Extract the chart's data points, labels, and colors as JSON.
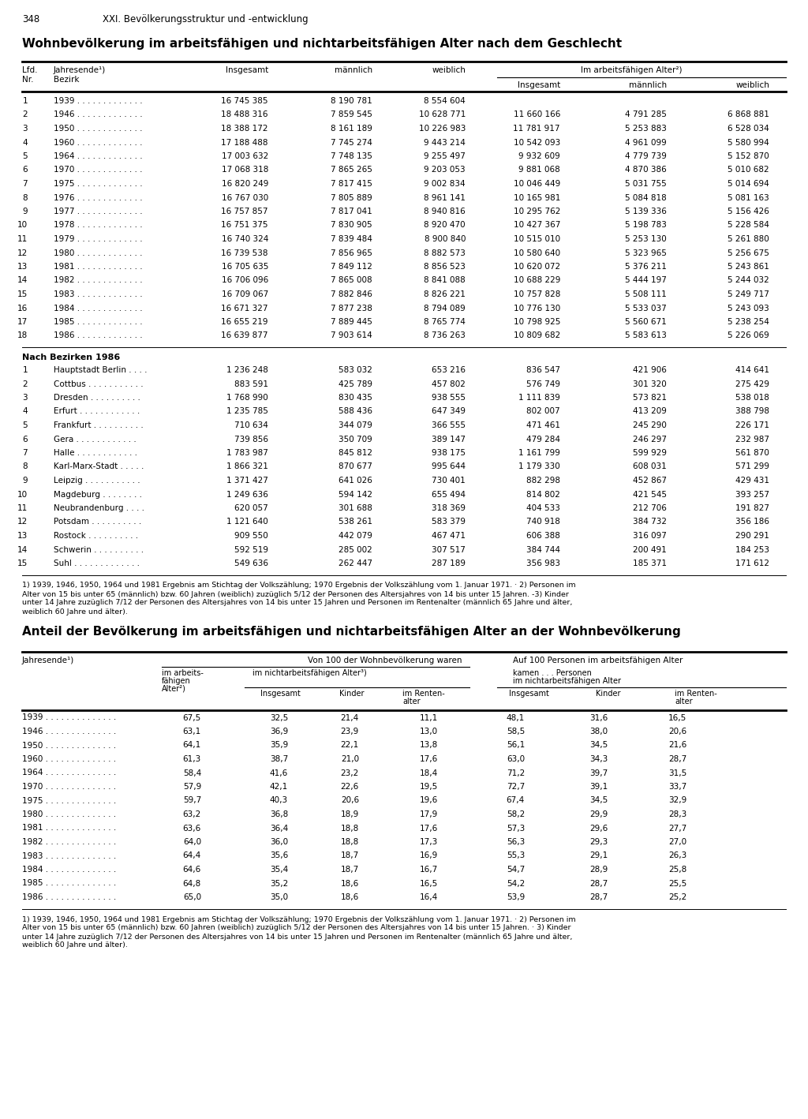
{
  "page_num": "348",
  "page_header": "XXI. Bevölkerungsstruktur und -entwicklung",
  "title1": "Wohnbevölkerung im arbeitsfähigen und nichtarbeitsfähigen Alter nach dem Geschlecht",
  "table1_years": [
    [
      "1",
      "1939 . . . . . . . . . . . . .",
      "16 745 385",
      "8 190 781",
      "8 554 604",
      "",
      "",
      ""
    ],
    [
      "2",
      "1946 . . . . . . . . . . . . .",
      "18 488 316",
      "7 859 545",
      "10 628 771",
      "11 660 166",
      "4 791 285",
      "6 868 881"
    ],
    [
      "3",
      "1950 . . . . . . . . . . . . .",
      "18 388 172",
      "8 161 189",
      "10 226 983",
      "11 781 917",
      "5 253 883",
      "6 528 034"
    ],
    [
      "4",
      "1960 . . . . . . . . . . . . .",
      "17 188 488",
      "7 745 274",
      "9 443 214",
      "10 542 093",
      "4 961 099",
      "5 580 994"
    ],
    [
      "5",
      "1964 . . . . . . . . . . . . .",
      "17 003 632",
      "7 748 135",
      "9 255 497",
      "9 932 609",
      "4 779 739",
      "5 152 870"
    ],
    [
      "6",
      "1970 . . . . . . . . . . . . .",
      "17 068 318",
      "7 865 265",
      "9 203 053",
      "9 881 068",
      "4 870 386",
      "5 010 682"
    ],
    [
      "7",
      "1975 . . . . . . . . . . . . .",
      "16 820 249",
      "7 817 415",
      "9 002 834",
      "10 046 449",
      "5 031 755",
      "5 014 694"
    ],
    [
      "8",
      "1976 . . . . . . . . . . . . .",
      "16 767 030",
      "7 805 889",
      "8 961 141",
      "10 165 981",
      "5 084 818",
      "5 081 163"
    ],
    [
      "9",
      "1977 . . . . . . . . . . . . .",
      "16 757 857",
      "7 817 041",
      "8 940 816",
      "10 295 762",
      "5 139 336",
      "5 156 426"
    ],
    [
      "10",
      "1978 . . . . . . . . . . . . .",
      "16 751 375",
      "7 830 905",
      "8 920 470",
      "10 427 367",
      "5 198 783",
      "5 228 584"
    ],
    [
      "11",
      "1979 . . . . . . . . . . . . .",
      "16 740 324",
      "7 839 484",
      "8 900 840",
      "10 515 010",
      "5 253 130",
      "5 261 880"
    ],
    [
      "12",
      "1980 . . . . . . . . . . . . .",
      "16 739 538",
      "7 856 965",
      "8 882 573",
      "10 580 640",
      "5 323 965",
      "5 256 675"
    ],
    [
      "13",
      "1981 . . . . . . . . . . . . .",
      "16 705 635",
      "7 849 112",
      "8 856 523",
      "10 620 072",
      "5 376 211",
      "5 243 861"
    ],
    [
      "14",
      "1982 . . . . . . . . . . . . .",
      "16 706 096",
      "7 865 008",
      "8 841 088",
      "10 688 229",
      "5 444 197",
      "5 244 032"
    ],
    [
      "15",
      "1983 . . . . . . . . . . . . .",
      "16 709 067",
      "7 882 846",
      "8 826 221",
      "10 757 828",
      "5 508 111",
      "5 249 717"
    ],
    [
      "16",
      "1984 . . . . . . . . . . . . .",
      "16 671 327",
      "7 877 238",
      "8 794 089",
      "10 776 130",
      "5 533 037",
      "5 243 093"
    ],
    [
      "17",
      "1985 . . . . . . . . . . . . .",
      "16 655 219",
      "7 889 445",
      "8 765 774",
      "10 798 925",
      "5 560 671",
      "5 238 254"
    ],
    [
      "18",
      "1986 . . . . . . . . . . . . .",
      "16 639 877",
      "7 903 614",
      "8 736 263",
      "10 809 682",
      "5 583 613",
      "5 226 069"
    ]
  ],
  "bezirk_header": "Nach Bezirken 1986",
  "table1_bezirk": [
    [
      "1",
      "Hauptstadt Berlin . . . .",
      "1 236 248",
      "583 032",
      "653 216",
      "836 547",
      "421 906",
      "414 641"
    ],
    [
      "2",
      "Cottbus . . . . . . . . . . .",
      "883 591",
      "425 789",
      "457 802",
      "576 749",
      "301 320",
      "275 429"
    ],
    [
      "3",
      "Dresden . . . . . . . . . .",
      "1 768 990",
      "830 435",
      "938 555",
      "1 111 839",
      "573 821",
      "538 018"
    ],
    [
      "4",
      "Erfurt . . . . . . . . . . . .",
      "1 235 785",
      "588 436",
      "647 349",
      "802 007",
      "413 209",
      "388 798"
    ],
    [
      "5",
      "Frankfurt . . . . . . . . . .",
      "710 634",
      "344 079",
      "366 555",
      "471 461",
      "245 290",
      "226 171"
    ],
    [
      "6",
      "Gera . . . . . . . . . . . .",
      "739 856",
      "350 709",
      "389 147",
      "479 284",
      "246 297",
      "232 987"
    ],
    [
      "7",
      "Halle . . . . . . . . . . . .",
      "1 783 987",
      "845 812",
      "938 175",
      "1 161 799",
      "599 929",
      "561 870"
    ],
    [
      "8",
      "Karl-Marx-Stadt . . . . .",
      "1 866 321",
      "870 677",
      "995 644",
      "1 179 330",
      "608 031",
      "571 299"
    ],
    [
      "9",
      "Leipzig . . . . . . . . . . .",
      "1 371 427",
      "641 026",
      "730 401",
      "882 298",
      "452 867",
      "429 431"
    ],
    [
      "10",
      "Magdeburg . . . . . . . .",
      "1 249 636",
      "594 142",
      "655 494",
      "814 802",
      "421 545",
      "393 257"
    ],
    [
      "11",
      "Neubrandenburg . . . .",
      "620 057",
      "301 688",
      "318 369",
      "404 533",
      "212 706",
      "191 827"
    ],
    [
      "12",
      "Potsdam . . . . . . . . . .",
      "1 121 640",
      "538 261",
      "583 379",
      "740 918",
      "384 732",
      "356 186"
    ],
    [
      "13",
      "Rostock . . . . . . . . . .",
      "909 550",
      "442 079",
      "467 471",
      "606 388",
      "316 097",
      "290 291"
    ],
    [
      "14",
      "Schwerin . . . . . . . . . .",
      "592 519",
      "285 002",
      "307 517",
      "384 744",
      "200 491",
      "184 253"
    ],
    [
      "15",
      "Suhl . . . . . . . . . . . . .",
      "549 636",
      "262 447",
      "287 189",
      "356 983",
      "185 371",
      "171 612"
    ]
  ],
  "footnote1a": "1) 1939, 1946, 1950, 1964 und 1981 Ergebnis am Stichtag der Volkszählung; 1970 Ergebnis der Volkszählung vom 1. Januar 1971. · 2) Personen im",
  "footnote1b": "Alter von 15 bis unter 65 (männlich) bzw. 60 Jahren (weiblich) zuzüglich 5/12 der Personen des Altersjahres von 14 bis unter 15 Jahren. -3) Kinder",
  "footnote1c": "unter 14 Jahre zuzüglich 7/12 der Personen des Altersjahres von 14 bis unter 15 Jahren und Personen im Rentenalter (männlich 65 Jahre und älter,",
  "footnote1d": "weiblich 60 Jahre und älter).",
  "title2": "Anteil der Bevölkerung im arbeitsfähigen und nichtarbeitsfähigen Alter an der Wohnbevölkerung",
  "table2_data": [
    [
      "1939 . . . . . . . . . . . . . .",
      "67,5",
      "32,5",
      "21,4",
      "11,1",
      "48,1",
      "31,6",
      "16,5"
    ],
    [
      "1946 . . . . . . . . . . . . . .",
      "63,1",
      "36,9",
      "23,9",
      "13,0",
      "58,5",
      "38,0",
      "20,6"
    ],
    [
      "1950 . . . . . . . . . . . . . .",
      "64,1",
      "35,9",
      "22,1",
      "13,8",
      "56,1",
      "34,5",
      "21,6"
    ],
    [
      "1960 . . . . . . . . . . . . . .",
      "61,3",
      "38,7",
      "21,0",
      "17,6",
      "63,0",
      "34,3",
      "28,7"
    ],
    [
      "1964 . . . . . . . . . . . . . .",
      "58,4",
      "41,6",
      "23,2",
      "18,4",
      "71,2",
      "39,7",
      "31,5"
    ],
    [
      "1970 . . . . . . . . . . . . . .",
      "57,9",
      "42,1",
      "22,6",
      "19,5",
      "72,7",
      "39,1",
      "33,7"
    ],
    [
      "1975 . . . . . . . . . . . . . .",
      "59,7",
      "40,3",
      "20,6",
      "19,6",
      "67,4",
      "34,5",
      "32,9"
    ],
    [
      "1980 . . . . . . . . . . . . . .",
      "63,2",
      "36,8",
      "18,9",
      "17,9",
      "58,2",
      "29,9",
      "28,3"
    ],
    [
      "1981 . . . . . . . . . . . . . .",
      "63,6",
      "36,4",
      "18,8",
      "17,6",
      "57,3",
      "29,6",
      "27,7"
    ],
    [
      "1982 . . . . . . . . . . . . . .",
      "64,0",
      "36,0",
      "18,8",
      "17,3",
      "56,3",
      "29,3",
      "27,0"
    ],
    [
      "1983 . . . . . . . . . . . . . .",
      "64,4",
      "35,6",
      "18,7",
      "16,9",
      "55,3",
      "29,1",
      "26,3"
    ],
    [
      "1984 . . . . . . . . . . . . . .",
      "64,6",
      "35,4",
      "18,7",
      "16,7",
      "54,7",
      "28,9",
      "25,8"
    ],
    [
      "1985 . . . . . . . . . . . . . .",
      "64,8",
      "35,2",
      "18,6",
      "16,5",
      "54,2",
      "28,7",
      "25,5"
    ],
    [
      "1986 . . . . . . . . . . . . . .",
      "65,0",
      "35,0",
      "18,6",
      "16,4",
      "53,9",
      "28,7",
      "25,2"
    ]
  ],
  "footnote2a": "1) 1939, 1946, 1950, 1964 und 1981 Ergebnis am Stichtag der Volkszählung; 1970 Ergebnis der Volkszählung vom 1. Januar 1971. · 2) Personen im",
  "footnote2b": "Alter von 15 bis unter 65 (männlich) bzw. 60 Jahren (weiblich) zuzüglich 5/12 der Personen des Altersjahres von 14 bis unter 15 Jahren. · 3) Kinder",
  "footnote2c": "unter 14 Jahre zuzüglich 7/12 der Personen des Altersjahres von 14 bis unter 15 Jahren und Personen im Rentenalter (männlich 65 Jahre und älter,",
  "footnote2d": "weiblich 60 Jahre und älter)."
}
